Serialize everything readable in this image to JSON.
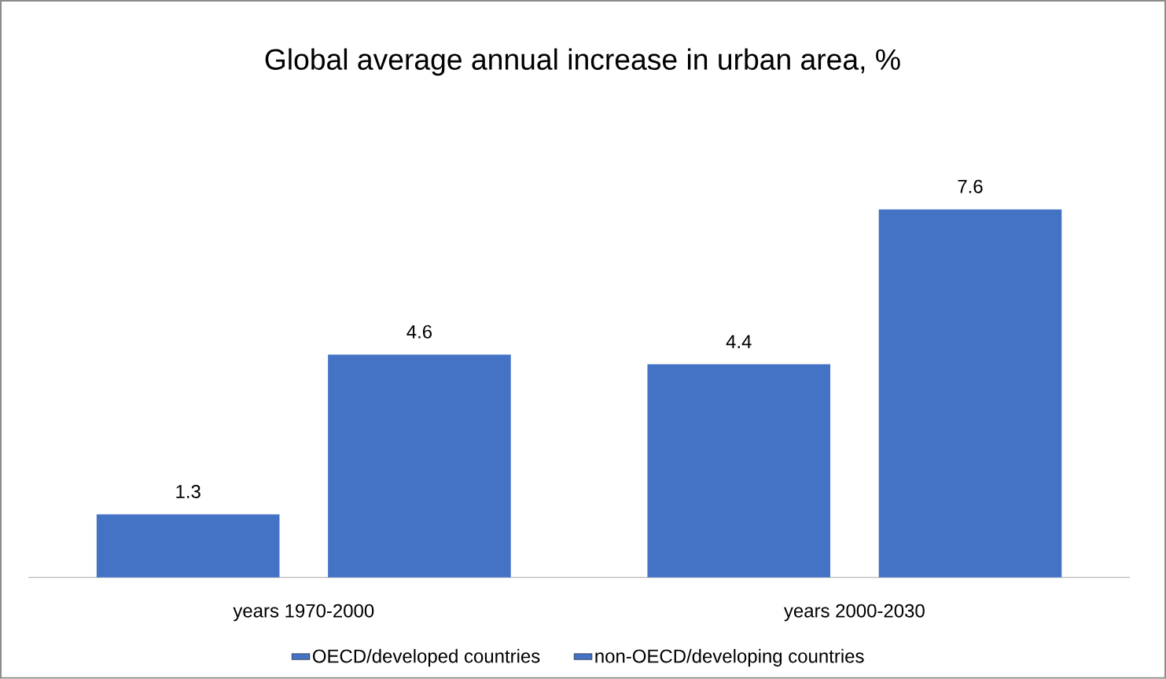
{
  "chart_data": {
    "type": "bar",
    "title": "Global average annual increase in urban area, %",
    "categories": [
      "years 1970-2000",
      "years 2000-2030"
    ],
    "series": [
      {
        "name": "OECD/developed countries",
        "color": "#4472c4",
        "values": [
          1.3,
          4.4
        ]
      },
      {
        "name": "non-OECD/developing countries",
        "color": "#4472c4",
        "values": [
          4.6,
          7.6
        ]
      }
    ],
    "data_labels": true,
    "legend": "bottom"
  }
}
